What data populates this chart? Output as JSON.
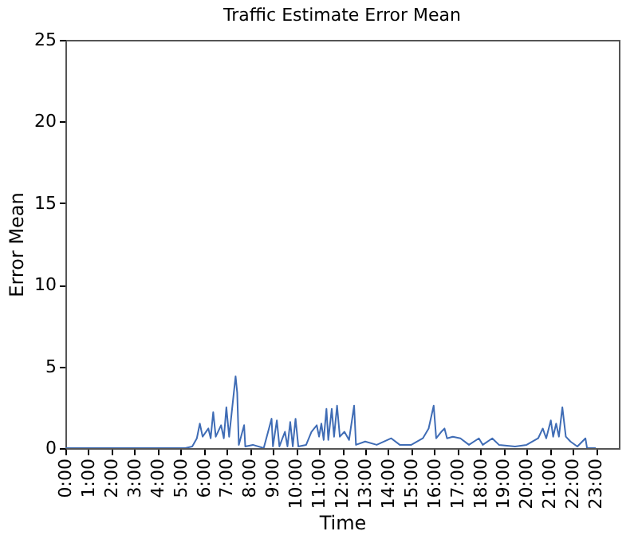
{
  "chart_data": {
    "type": "line",
    "title": "Traffic Estimate Error Mean",
    "xlabel": "Time",
    "ylabel": "Error Mean",
    "x": [
      0,
      5.2,
      5.5,
      5.7,
      5.83,
      5.95,
      6.2,
      6.3,
      6.41,
      6.52,
      6.75,
      6.87,
      6.98,
      7.1,
      7.38,
      7.45,
      7.52,
      7.75,
      7.8,
      8.13,
      8.6,
      8.94,
      9.0,
      9.17,
      9.28,
      9.52,
      9.63,
      9.75,
      9.86,
      9.98,
      10.1,
      10.44,
      10.67,
      10.9,
      11.0,
      11.1,
      11.2,
      11.32,
      11.4,
      11.55,
      11.65,
      11.78,
      11.9,
      12.1,
      12.3,
      12.52,
      12.6,
      13.0,
      13.5,
      14.13,
      14.5,
      15.0,
      15.5,
      15.75,
      15.97,
      16.08,
      16.3,
      16.44,
      16.55,
      16.8,
      17.13,
      17.5,
      17.93,
      18.1,
      18.51,
      18.8,
      19.5,
      20.0,
      20.5,
      20.7,
      20.85,
      21.05,
      21.15,
      21.28,
      21.4,
      21.55,
      21.7,
      21.9,
      22.2,
      22.55,
      22.62,
      23.0
    ],
    "series": [
      {
        "color": "#3f6cb5",
        "values": [
          0,
          0,
          0.1,
          0.6,
          1.5,
          0.7,
          1.2,
          0.6,
          2.2,
          0.7,
          1.4,
          0.6,
          2.5,
          0.7,
          4.4,
          3.4,
          0.2,
          1.4,
          0.1,
          0.2,
          0,
          1.8,
          0.1,
          1.7,
          0.1,
          1.0,
          0.1,
          1.6,
          0.1,
          1.8,
          0.1,
          0.2,
          1.0,
          1.4,
          0.7,
          1.5,
          0.5,
          2.4,
          0.5,
          2.4,
          0.7,
          2.6,
          0.7,
          1.0,
          0.5,
          2.6,
          0.2,
          0.4,
          0.2,
          0.6,
          0.2,
          0.2,
          0.6,
          1.2,
          2.6,
          0.6,
          1.0,
          1.2,
          0.6,
          0.7,
          0.6,
          0.2,
          0.6,
          0.2,
          0.6,
          0.2,
          0.1,
          0.2,
          0.6,
          1.2,
          0.6,
          1.7,
          0.7,
          1.5,
          0.7,
          2.5,
          0.7,
          0.4,
          0.1,
          0.6,
          0,
          0
        ]
      }
    ],
    "xlim": [
      0,
      24
    ],
    "xticks": [
      {
        "value": 0,
        "label": "0:00"
      },
      {
        "value": 1,
        "label": "1:00"
      },
      {
        "value": 2,
        "label": "2:00"
      },
      {
        "value": 3,
        "label": "3:00"
      },
      {
        "value": 4,
        "label": "4:00"
      },
      {
        "value": 5,
        "label": "5:00"
      },
      {
        "value": 6,
        "label": "6:00"
      },
      {
        "value": 7,
        "label": "7:00"
      },
      {
        "value": 8,
        "label": "8:00"
      },
      {
        "value": 9,
        "label": "9:00"
      },
      {
        "value": 10,
        "label": "10:00"
      },
      {
        "value": 11,
        "label": "11:00"
      },
      {
        "value": 12,
        "label": "12:00"
      },
      {
        "value": 13,
        "label": "13:00"
      },
      {
        "value": 14,
        "label": "14:00"
      },
      {
        "value": 15,
        "label": "15:00"
      },
      {
        "value": 16,
        "label": "16:00"
      },
      {
        "value": 17,
        "label": "17:00"
      },
      {
        "value": 18,
        "label": "18:00"
      },
      {
        "value": 19,
        "label": "19:00"
      },
      {
        "value": 20,
        "label": "20:00"
      },
      {
        "value": 21,
        "label": "21:00"
      },
      {
        "value": 22,
        "label": "22:00"
      },
      {
        "value": 23,
        "label": "23:00"
      }
    ],
    "ylim": [
      0,
      25
    ],
    "yticks": [
      0,
      5,
      10,
      15,
      20,
      25
    ],
    "grid": false
  }
}
